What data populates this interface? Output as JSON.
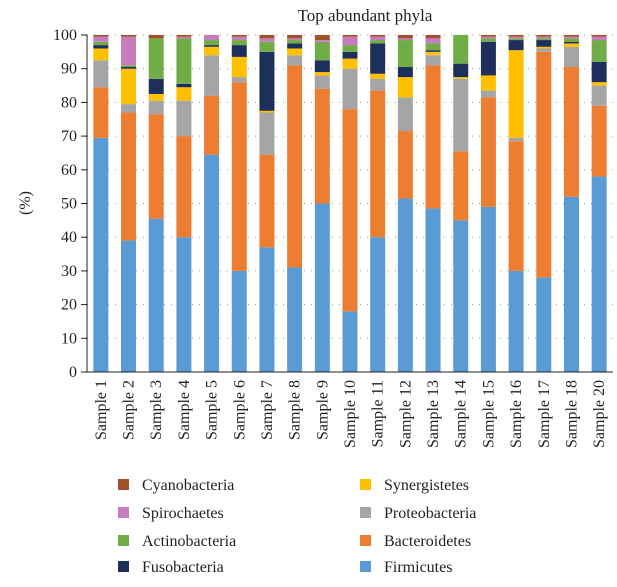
{
  "chart_data": {
    "type": "bar",
    "stacked": true,
    "title": "Top abundant phyla",
    "ylabel": "(%)",
    "xlabel": "",
    "ylim": [
      0,
      100
    ],
    "yticks": [
      0,
      10,
      20,
      30,
      40,
      50,
      60,
      70,
      80,
      90,
      100
    ],
    "grid": "horizontal dotted",
    "legend_position": "bottom",
    "categories": [
      "Sample 1",
      "Sample 2",
      "Sample 3",
      "Sample 4",
      "Sample 5",
      "Sample 6",
      "Sample 7",
      "Sample 8",
      "Sample 9",
      "Sample 10",
      "Sample 11",
      "Sample 12",
      "Sample 13",
      "Sample 14",
      "Sample 15",
      "Sample 16",
      "Sample 17",
      "Sample 18",
      "Sample 20"
    ],
    "series": [
      {
        "name": "Firmicutes",
        "color": "#5b9bd5",
        "values": [
          69.5,
          39,
          45.5,
          40,
          64.5,
          30,
          37,
          31,
          50,
          18,
          40,
          51.5,
          48.5,
          45,
          49,
          30,
          28,
          52,
          58
        ]
      },
      {
        "name": "Bacteroidetes",
        "color": "#ed7d31",
        "values": [
          15,
          38,
          31,
          30,
          17.5,
          56,
          27.5,
          60,
          34,
          60,
          43.5,
          20,
          42.5,
          20.5,
          32.5,
          38.5,
          67,
          38.5,
          21
        ]
      },
      {
        "name": "Proteobacteria",
        "color": "#a5a5a5",
        "values": [
          8,
          2.5,
          4,
          10.5,
          12,
          1.5,
          12.5,
          3,
          4,
          12,
          3.5,
          10,
          3,
          21.5,
          2,
          1,
          1,
          6,
          6
        ]
      },
      {
        "name": "Synergistetes",
        "color": "#ffc000",
        "values": [
          3.5,
          10.5,
          2,
          4,
          2.5,
          6,
          0.5,
          2,
          1,
          3,
          1.5,
          6,
          1,
          0.5,
          4.5,
          26,
          0.5,
          1,
          1
        ]
      },
      {
        "name": "Fusobacteria",
        "color": "#1f2f5c",
        "values": [
          1,
          0.5,
          4.5,
          1,
          0.5,
          3.5,
          17.5,
          1.5,
          3.5,
          2,
          9,
          3,
          0.5,
          4,
          10,
          3,
          2,
          0.5,
          6
        ]
      },
      {
        "name": "Actinobacteria",
        "color": "#70ad47",
        "values": [
          1,
          0.5,
          12,
          13.5,
          1.5,
          1.5,
          3,
          1,
          5.5,
          2,
          1,
          8,
          2,
          8.5,
          1,
          0.5,
          0.5,
          1,
          6.5
        ]
      },
      {
        "name": "Spirochaetes",
        "color": "#c77cbf",
        "values": [
          1.5,
          8.5,
          0,
          0.5,
          1.5,
          1,
          1,
          0.5,
          0.5,
          2.5,
          1,
          0.5,
          1.5,
          0,
          0.5,
          0.5,
          0.5,
          0.5,
          1
        ]
      },
      {
        "name": "Cyanobacteria",
        "color": "#a0522d",
        "values": [
          0.5,
          2,
          1.5,
          0.5,
          0.5,
          0.5,
          1,
          1,
          1.5,
          0.5,
          0.5,
          1,
          1,
          0,
          0.5,
          0.5,
          0.5,
          0.5,
          0.5
        ]
      }
    ],
    "legend_order": [
      "Cyanobacteria",
      "Synergistetes",
      "Spirochaetes",
      "Proteobacteria",
      "Actinobacteria",
      "Bacteroidetes",
      "Fusobacteria",
      "Firmicutes"
    ]
  }
}
